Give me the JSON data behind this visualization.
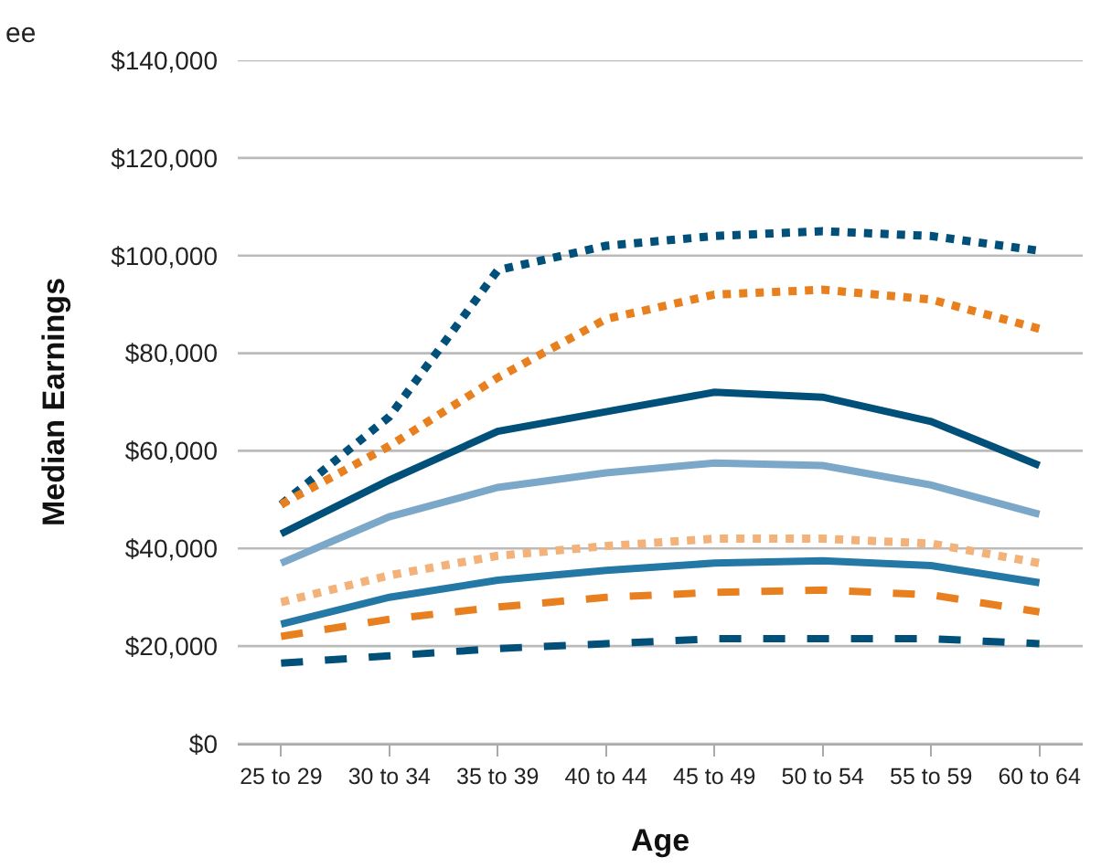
{
  "chart_data": {
    "type": "line",
    "xlabel": "Age",
    "ylabel": "Median Earnings",
    "annotations": [
      "ee"
    ],
    "categories": [
      "25 to 29",
      "30 to 34",
      "35 to 39",
      "40 to 44",
      "45 to 49",
      "50 to 54",
      "55 to 59",
      "60 to 64"
    ],
    "series": [
      {
        "color": "#00507a",
        "line_style": "dotted",
        "values": [
          49000,
          67000,
          97000,
          102000,
          104000,
          105000,
          104000,
          101000
        ]
      },
      {
        "color": "#e8801f",
        "line_style": "dotted",
        "values": [
          49000,
          61000,
          75000,
          87000,
          92000,
          93000,
          91000,
          85000
        ]
      },
      {
        "color": "#00507a",
        "line_style": "solid",
        "values": [
          43000,
          54000,
          64000,
          68000,
          72000,
          71000,
          66000,
          57000
        ]
      },
      {
        "color": "#7ba7c9",
        "line_style": "solid",
        "values": [
          37000,
          46500,
          52500,
          55500,
          57500,
          57000,
          53000,
          47000
        ]
      },
      {
        "color": "#f2b27a",
        "line_style": "dotted",
        "values": [
          29000,
          34500,
          38500,
          40500,
          42000,
          42000,
          41000,
          37000
        ]
      },
      {
        "color": "#2478a5",
        "line_style": "solid",
        "values": [
          24500,
          30000,
          33500,
          35500,
          37000,
          37500,
          36500,
          33000
        ]
      },
      {
        "color": "#e8801f",
        "line_style": "dashed",
        "values": [
          22000,
          25500,
          28000,
          30000,
          31000,
          31500,
          30500,
          27000
        ]
      },
      {
        "color": "#00507a",
        "line_style": "dashed",
        "values": [
          16500,
          18000,
          19500,
          20500,
          21500,
          21500,
          21500,
          20500
        ]
      }
    ],
    "ylim": [
      0,
      140000
    ],
    "yticks": [
      {
        "value": 0,
        "label": "$0"
      },
      {
        "value": 20000,
        "label": "$20,000"
      },
      {
        "value": 40000,
        "label": "$40,000"
      },
      {
        "value": 60000,
        "label": "$60,000"
      },
      {
        "value": 80000,
        "label": "$80,000"
      },
      {
        "value": 100000,
        "label": "$100,000"
      },
      {
        "value": 120000,
        "label": "$120,000"
      },
      {
        "value": 140000,
        "label": "$140,000"
      }
    ],
    "grid": "y",
    "marker": "none"
  }
}
